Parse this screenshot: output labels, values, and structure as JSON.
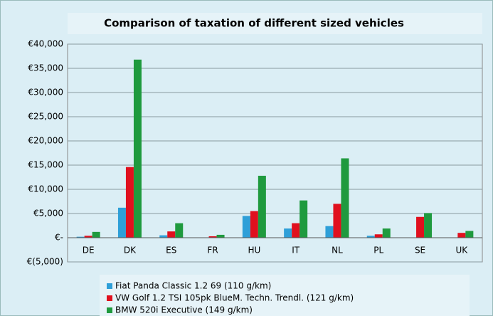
{
  "chart_data": {
    "type": "bar",
    "title": "Comparison of taxation of different sized vehicles",
    "categories": [
      "DE",
      "DK",
      "ES",
      "FR",
      "HU",
      "IT",
      "NL",
      "PL",
      "SE",
      "UK"
    ],
    "series": [
      {
        "name": "Fiat Panda Classic 1.2 69 (110 g/km)",
        "color": "#2e9fd8",
        "values": [
          200,
          6200,
          500,
          0,
          4500,
          1900,
          2400,
          400,
          0,
          0
        ]
      },
      {
        "name": "VW Golf 1.2 TSI 105pk BlueM. Techn. Trendl. (121 g/km)",
        "color": "#e0101e",
        "values": [
          400,
          14600,
          1300,
          300,
          5500,
          3000,
          7000,
          700,
          4300,
          1000
        ]
      },
      {
        "name": "BMW 520i Executive (149 g/km)",
        "color": "#1f9a3e",
        "values": [
          1200,
          36800,
          3000,
          600,
          12800,
          7700,
          16400,
          1900,
          5100,
          1400
        ]
      }
    ],
    "ylim": [
      -5000,
      40000
    ],
    "yticks": [
      {
        "value": -5000,
        "label": "€(5,000)"
      },
      {
        "value": 0,
        "label": "€-"
      },
      {
        "value": 5000,
        "label": "€5,000"
      },
      {
        "value": 10000,
        "label": "€10,000"
      },
      {
        "value": 15000,
        "label": "€15,000"
      },
      {
        "value": 20000,
        "label": "€20,000"
      },
      {
        "value": 25000,
        "label": "€25,000"
      },
      {
        "value": 30000,
        "label": "€30,000"
      },
      {
        "value": 35000,
        "label": "€35,000"
      },
      {
        "value": 40000,
        "label": "€40,000"
      }
    ],
    "grid": true,
    "legend": "bottom"
  }
}
